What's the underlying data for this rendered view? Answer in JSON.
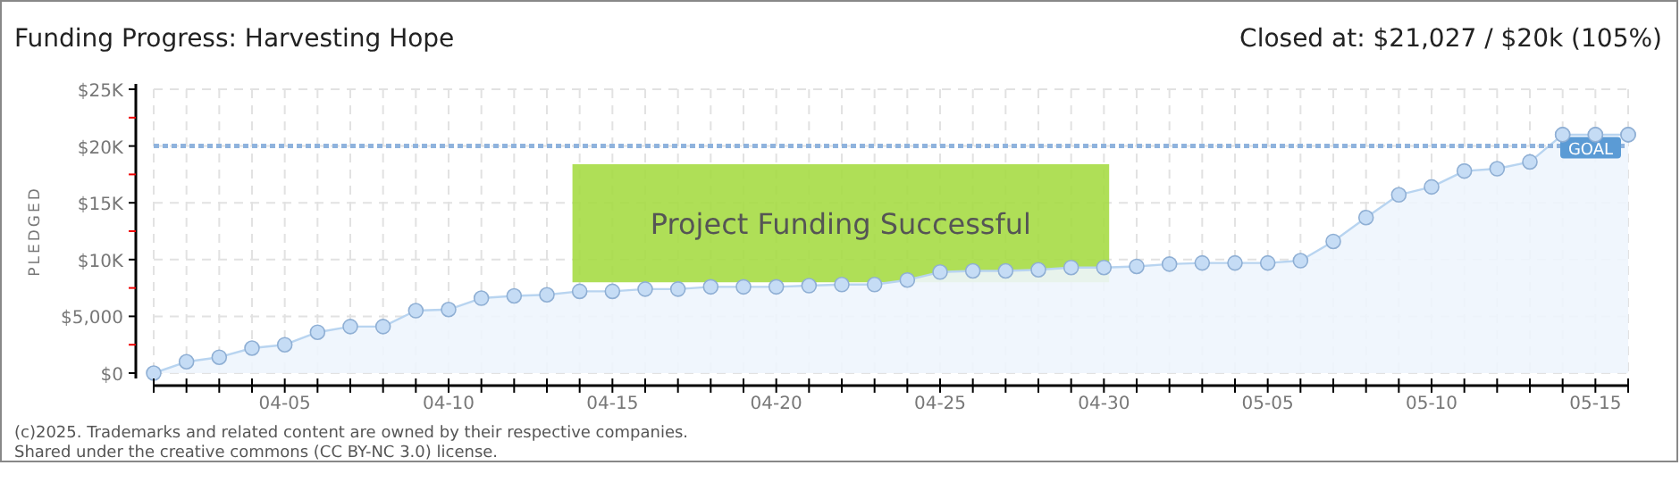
{
  "chart_data": {
    "type": "area",
    "title": "Funding Progress: Harvesting Hope",
    "subtitle": "Closed at: $21,027 / $20k (105%)",
    "ylabel": "PLEDGED",
    "x": [
      "--04-01",
      "--04-02",
      "--04-03",
      "--04-04",
      "--04-05",
      "--04-06",
      "--04-07",
      "--04-08",
      "--04-09",
      "--04-10",
      "--04-11",
      "--04-12",
      "--04-13",
      "--04-14",
      "--04-15",
      "--04-16",
      "--04-17",
      "--04-18",
      "--04-19",
      "--04-20",
      "--04-21",
      "--04-22",
      "--04-23",
      "--04-24",
      "--04-25",
      "--04-26",
      "--04-27",
      "--04-28",
      "--04-29",
      "--04-30",
      "--05-01",
      "--05-02",
      "--05-03",
      "--05-04",
      "--05-05",
      "--05-06",
      "--05-07",
      "--05-08",
      "--05-09",
      "--05-10",
      "--05-11",
      "--05-12",
      "--05-13",
      "--05-14",
      "--05-15",
      "--05-16"
    ],
    "series": [
      {
        "color": "#c5dcf5",
        "values": [
          0,
          1000,
          1400,
          2200,
          2500,
          3600,
          4100,
          4100,
          5500,
          5600,
          6600,
          6800,
          6900,
          7200,
          7200,
          7400,
          7400,
          7600,
          7600,
          7600,
          7700,
          7800,
          7800,
          8200,
          8900,
          9000,
          9000,
          9100,
          9300,
          9300,
          9400,
          9600,
          9700,
          9700,
          9700,
          9900,
          11600,
          13700,
          15700,
          16400,
          17800,
          18000,
          18600,
          21000,
          21000,
          21000
        ]
      }
    ],
    "marker": "circle",
    "grid": true,
    "xlim": [
      "--04-01",
      "--05-16"
    ],
    "xticks": [
      {
        "value": "--04-01",
        "label": null
      },
      {
        "value": "--04-02",
        "label": null
      },
      {
        "value": "--04-03",
        "label": null
      },
      {
        "value": "--04-04",
        "label": null
      },
      {
        "value": "--04-05",
        "label": "04-05"
      },
      {
        "value": "--04-06",
        "label": null
      },
      {
        "value": "--04-07",
        "label": null
      },
      {
        "value": "--04-08",
        "label": null
      },
      {
        "value": "--04-09",
        "label": null
      },
      {
        "value": "--04-10",
        "label": "04-10"
      },
      {
        "value": "--04-11",
        "label": null
      },
      {
        "value": "--04-12",
        "label": null
      },
      {
        "value": "--04-13",
        "label": null
      },
      {
        "value": "--04-14",
        "label": null
      },
      {
        "value": "--04-15",
        "label": "04-15"
      },
      {
        "value": "--04-16",
        "label": null
      },
      {
        "value": "--04-17",
        "label": null
      },
      {
        "value": "--04-18",
        "label": null
      },
      {
        "value": "--04-19",
        "label": null
      },
      {
        "value": "--04-20",
        "label": "04-20"
      },
      {
        "value": "--04-21",
        "label": null
      },
      {
        "value": "--04-22",
        "label": null
      },
      {
        "value": "--04-23",
        "label": null
      },
      {
        "value": "--04-24",
        "label": null
      },
      {
        "value": "--04-25",
        "label": "04-25"
      },
      {
        "value": "--04-26",
        "label": null
      },
      {
        "value": "--04-27",
        "label": null
      },
      {
        "value": "--04-28",
        "label": null
      },
      {
        "value": "--04-29",
        "label": null
      },
      {
        "value": "--04-30",
        "label": "04-30"
      },
      {
        "value": "--05-01",
        "label": null
      },
      {
        "value": "--05-02",
        "label": null
      },
      {
        "value": "--05-03",
        "label": null
      },
      {
        "value": "--05-04",
        "label": null
      },
      {
        "value": "--05-05",
        "label": "05-05"
      },
      {
        "value": "--05-06",
        "label": null
      },
      {
        "value": "--05-07",
        "label": null
      },
      {
        "value": "--05-08",
        "label": null
      },
      {
        "value": "--05-09",
        "label": null
      },
      {
        "value": "--05-10",
        "label": "05-10"
      },
      {
        "value": "--05-11",
        "label": null
      },
      {
        "value": "--05-12",
        "label": null
      },
      {
        "value": "--05-13",
        "label": null
      },
      {
        "value": "--05-14",
        "label": null
      },
      {
        "value": "--05-15",
        "label": "05-15"
      },
      {
        "value": "--05-16",
        "label": null
      }
    ],
    "ylim": [
      0,
      25000
    ],
    "yticks": [
      {
        "value": 0,
        "label": "$0"
      },
      {
        "value": 2500,
        "label": null
      },
      {
        "value": 5000,
        "label": "$5,000"
      },
      {
        "value": 7500,
        "label": null
      },
      {
        "value": 10000,
        "label": "$10K"
      },
      {
        "value": 12500,
        "label": null
      },
      {
        "value": 15000,
        "label": "$15K"
      },
      {
        "value": 17500,
        "label": null
      },
      {
        "value": 20000,
        "label": "$20K"
      },
      {
        "value": 22500,
        "label": null
      },
      {
        "value": 25000,
        "label": "$25K"
      }
    ],
    "ref_lines": [
      {
        "axis": "y",
        "value": 20000,
        "label": "GOAL",
        "color": "#8fb3dd",
        "line_style": "dotted"
      }
    ],
    "annotations": [
      "Project Funding Successful",
      "(c)2025. Trademarks and related content are owned by their respective companies.",
      "Shared under the creative commons (CC BY-NC 3.0) license."
    ]
  }
}
